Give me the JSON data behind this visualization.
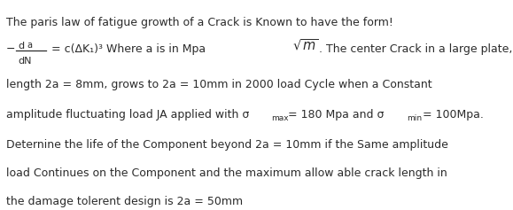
{
  "bg_color": "#ffffff",
  "text_color": "#2b2b2b",
  "fig_width": 5.79,
  "fig_height": 2.37,
  "dpi": 100,
  "fs": 9.0,
  "fs_small": 6.5,
  "fs_formula": 9.0,
  "line1": "The paris law of fatigue growth of a Crack is Known to have the form!",
  "line_eq_main": "= c(ΔK₁)³ Where a is in Mpa",
  "line_eq_rest": ". The center Crack in a large plate, initially of",
  "line3": "length 2a = 8mm, grows to 2a = 10mm in 2000 load Cycle when a Constant",
  "line4_pre": "amplitude fluctuating load JA applied with σ",
  "line4_mid": "= 180 Mpa and σ",
  "line4_end": "= 100Mpa.",
  "line4_sub1": "max",
  "line4_sub2": "min",
  "line5": "Deternine the life of the Component beyond 2a = 10mm if the Same amplitude",
  "line6": "load Continues on the Component and the maximum allow able crack length in",
  "line7": "the damage tolerent design is 2a = 50mm"
}
